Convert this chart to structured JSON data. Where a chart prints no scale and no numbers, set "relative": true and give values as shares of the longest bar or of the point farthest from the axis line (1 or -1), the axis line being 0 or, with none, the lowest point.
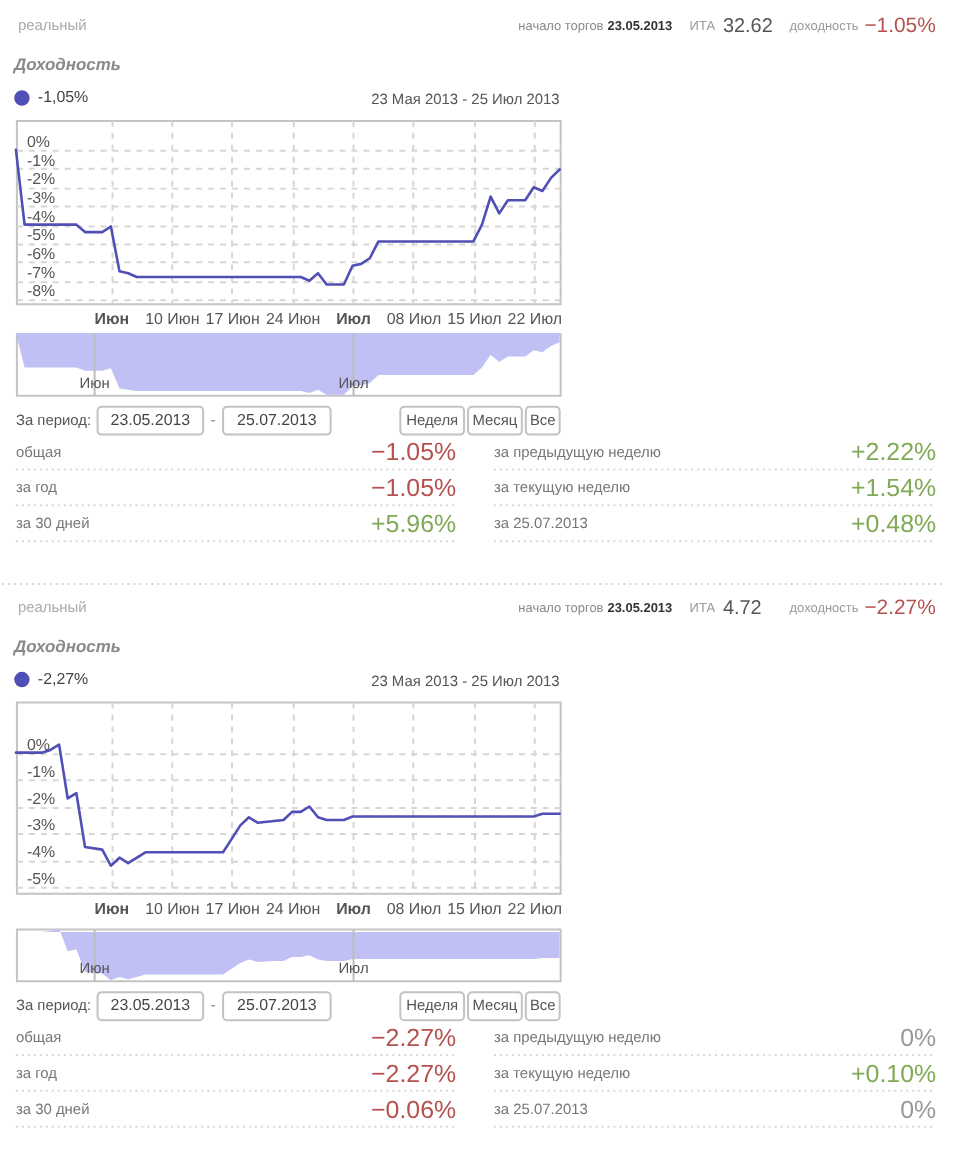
{
  "chart_data": [
    {
      "type": "other",
      "annotations": [
        "реальный",
        "начало торгов",
        "23.05.2013",
        "ИТА",
        "32.62",
        "доходность",
        "−1.05%"
      ],
      "colors": [
        "#aaaaaa",
        "#888888",
        "#333333",
        "#999999",
        "#555555",
        "#999999",
        "#b5524f"
      ]
    },
    {
      "type": "line",
      "title": "Доходность",
      "annotations": [
        "23 Мая 2013 - 25 Июл 2013"
      ],
      "x": [
        "2013-05-23",
        "2013-05-24",
        "2013-05-30",
        "2013-05-31",
        "2013-06-02",
        "2013-06-03",
        "2013-06-04",
        "2013-06-05",
        "2013-06-06",
        "2013-06-25",
        "2013-06-26",
        "2013-06-27",
        "2013-06-28",
        "2013-06-30",
        "2013-07-01",
        "2013-07-02",
        "2013-07-03",
        "2013-07-04",
        "2013-07-15",
        "2013-07-16",
        "2013-07-17",
        "2013-07-18",
        "2013-07-19",
        "2013-07-21",
        "2013-07-22",
        "2013-07-23",
        "2013-07-24",
        "2013-07-25"
      ],
      "series": [
        {
          "name": "-1,05%",
          "color": "#4f4fb5",
          "values": [
            0,
            -4.0,
            -4.0,
            -4.4,
            -4.4,
            -4.1,
            -6.5,
            -6.6,
            -6.8,
            -6.8,
            -7.0,
            -6.6,
            -7.2,
            -7.2,
            -6.2,
            -6.1,
            -5.8,
            -4.9,
            -4.9,
            -4.0,
            -2.5,
            -3.4,
            -2.7,
            -2.7,
            -2.0,
            -2.2,
            -1.5,
            -1.05
          ]
        }
      ],
      "xlim": [
        "2013-05-23",
        "2013-07-25"
      ],
      "xticks": [
        {
          "value": "2013-06-03",
          "label": "Июн"
        },
        {
          "value": "2013-06-10",
          "label": "10 Июн"
        },
        {
          "value": "2013-06-17",
          "label": "17 Июн"
        },
        {
          "value": "2013-06-24",
          "label": "24 Июн"
        },
        {
          "value": "2013-07-01",
          "label": "Июл"
        },
        {
          "value": "2013-07-08",
          "label": "08 Июл"
        },
        {
          "value": "2013-07-15",
          "label": "15 Июл"
        },
        {
          "value": "2013-07-22",
          "label": "22 Июл"
        }
      ],
      "ylim": [
        -8.2,
        1.6
      ],
      "yticks": [
        {
          "value": 0,
          "label": "0%"
        },
        {
          "value": -1,
          "label": "-1%"
        },
        {
          "value": -2,
          "label": "-2%"
        },
        {
          "value": -3,
          "label": "-3%"
        },
        {
          "value": -4,
          "label": "-4%"
        },
        {
          "value": -5,
          "label": "-5%"
        },
        {
          "value": -6,
          "label": "-6%"
        },
        {
          "value": -7,
          "label": "-7%"
        },
        {
          "value": -8,
          "label": "-8%"
        }
      ],
      "grid": true,
      "legend": "top left"
    },
    {
      "type": "area",
      "relative": true,
      "color": "#c0c0f4",
      "categories": [
        null,
        null,
        null,
        null,
        null,
        null,
        null,
        null,
        null,
        "Июн",
        null,
        null,
        null,
        null,
        null,
        null,
        null,
        null,
        null,
        null,
        null,
        null,
        null,
        null,
        null,
        null,
        null,
        null,
        null,
        null,
        null,
        null,
        null,
        null,
        null,
        null,
        null,
        null,
        null,
        "Июл",
        null,
        null,
        null,
        null,
        null,
        null,
        null,
        null,
        null,
        null,
        null,
        null,
        null,
        null,
        null,
        null,
        null,
        null,
        null,
        null,
        null,
        null,
        null,
        null
      ],
      "values": [
        0,
        -0.56,
        -0.56,
        -0.56,
        -0.56,
        -0.56,
        -0.56,
        -0.56,
        -0.61,
        -0.61,
        -0.61,
        -0.57,
        -0.9,
        -0.92,
        -0.94,
        -0.94,
        -0.94,
        -0.94,
        -0.94,
        -0.94,
        -0.94,
        -0.94,
        -0.94,
        -0.94,
        -0.94,
        -0.94,
        -0.94,
        -0.94,
        -0.94,
        -0.94,
        -0.94,
        -0.94,
        -0.94,
        -0.94,
        -0.97,
        -0.92,
        -1,
        -1,
        -1,
        -0.86,
        -0.85,
        -0.81,
        -0.68,
        -0.68,
        -0.68,
        -0.68,
        -0.68,
        -0.68,
        -0.68,
        -0.68,
        -0.68,
        -0.68,
        -0.68,
        -0.68,
        -0.56,
        -0.35,
        -0.47,
        -0.38,
        -0.38,
        -0.38,
        -0.28,
        -0.31,
        -0.21,
        -0.15
      ],
      "grid": "x"
    },
    {
      "type": "other",
      "annotations": [
        "За период:",
        "23.05.2013",
        "-",
        "25.07.2013",
        "Неделя",
        "Месяц",
        "Все",
        "общая",
        "−1.05%",
        "за предыдущую неделю",
        "+2.22%",
        "за год",
        "−1.05%",
        "за текущую неделю",
        "+1.54%",
        "за 30 дней",
        "+5.96%",
        "за 25.07.2013",
        "+0.48%"
      ],
      "colors": [
        "#555555",
        "#444444",
        "#888888",
        "#444444",
        "#555555",
        "#555555",
        "#555555",
        "#777777",
        "#b5524f",
        "#777777",
        "#80aa55",
        "#777777",
        "#b5524f",
        "#777777",
        "#80aa55",
        "#777777",
        "#80aa55",
        "#777777",
        "#80aa55"
      ]
    },
    {
      "type": "other",
      "annotations": [
        "реальный",
        "начало торгов",
        "23.05.2013",
        "ИТА",
        "4.72",
        "доходность",
        "−2.27%"
      ],
      "colors": [
        "#aaaaaa",
        "#888888",
        "#333333",
        "#999999",
        "#555555",
        "#999999",
        "#b5524f"
      ]
    },
    {
      "type": "line",
      "title": "Доходность",
      "annotations": [
        "23 Мая 2013 - 25 Июл 2013"
      ],
      "x": [
        "2013-05-23",
        "2013-05-26",
        "2013-05-27",
        "2013-05-28",
        "2013-05-29",
        "2013-05-30",
        "2013-05-31",
        "2013-06-02",
        "2013-06-03",
        "2013-06-04",
        "2013-06-05",
        "2013-06-07",
        "2013-06-16",
        "2013-06-17",
        "2013-06-18",
        "2013-06-19",
        "2013-06-20",
        "2013-06-23",
        "2013-06-24",
        "2013-06-25",
        "2013-06-26",
        "2013-06-27",
        "2013-06-28",
        "2013-06-30",
        "2013-07-01",
        "2013-07-22",
        "2013-07-23",
        "2013-07-25"
      ],
      "series": [
        {
          "name": "-2,27%",
          "color": "#4f4fb5",
          "values": [
            0,
            0,
            0.1,
            0.3,
            -1.7,
            -1.5,
            -3.5,
            -3.6,
            -4.2,
            -3.9,
            -4.1,
            -3.7,
            -3.7,
            -3.2,
            -2.7,
            -2.4,
            -2.6,
            -2.5,
            -2.2,
            -2.2,
            -2.0,
            -2.4,
            -2.5,
            -2.5,
            -2.37,
            -2.37,
            -2.27,
            -2.27
          ]
        }
      ],
      "xlim": [
        "2013-05-23",
        "2013-07-25"
      ],
      "xticks": [
        {
          "value": "2013-06-03",
          "label": "Июн"
        },
        {
          "value": "2013-06-10",
          "label": "10 Июн"
        },
        {
          "value": "2013-06-17",
          "label": "17 Июн"
        },
        {
          "value": "2013-06-24",
          "label": "24 Июн"
        },
        {
          "value": "2013-07-01",
          "label": "Июл"
        },
        {
          "value": "2013-07-08",
          "label": "08 Июл"
        },
        {
          "value": "2013-07-15",
          "label": "15 Июл"
        },
        {
          "value": "2013-07-22",
          "label": "22 Июл"
        }
      ],
      "ylim": [
        -5.2,
        1.9
      ],
      "yticks": [
        {
          "value": 0,
          "label": "0%"
        },
        {
          "value": -1,
          "label": "-1%"
        },
        {
          "value": -2,
          "label": "-2%"
        },
        {
          "value": -3,
          "label": "-3%"
        },
        {
          "value": -4,
          "label": "-4%"
        },
        {
          "value": -5,
          "label": "-5%"
        }
      ],
      "grid": true,
      "legend": "top left"
    },
    {
      "type": "area",
      "relative": true,
      "color": "#c0c0f4",
      "categories": [
        null,
        null,
        null,
        null,
        null,
        null,
        null,
        null,
        null,
        "Июн",
        null,
        null,
        null,
        null,
        null,
        null,
        null,
        null,
        null,
        null,
        null,
        null,
        null,
        null,
        null,
        null,
        null,
        null,
        null,
        null,
        null,
        null,
        null,
        null,
        null,
        null,
        null,
        null,
        null,
        "Июл",
        null,
        null,
        null,
        null,
        null,
        null,
        null,
        null,
        null,
        null,
        null,
        null,
        null,
        null,
        null,
        null,
        null,
        null,
        null,
        null,
        null,
        null,
        null,
        null
      ],
      "values": [
        0,
        0,
        0,
        0,
        0.02,
        0.07,
        -0.4,
        -0.36,
        -0.83,
        -0.85,
        -0.86,
        -1,
        -0.93,
        -0.98,
        -0.93,
        -0.88,
        -0.88,
        -0.88,
        -0.88,
        -0.88,
        -0.88,
        -0.88,
        -0.88,
        -0.88,
        -0.88,
        -0.76,
        -0.64,
        -0.57,
        -0.62,
        -0.61,
        -0.6,
        -0.6,
        -0.52,
        -0.52,
        -0.48,
        -0.57,
        -0.6,
        -0.6,
        -0.6,
        -0.56,
        -0.56,
        -0.56,
        -0.56,
        -0.56,
        -0.56,
        -0.56,
        -0.56,
        -0.56,
        -0.56,
        -0.56,
        -0.56,
        -0.56,
        -0.56,
        -0.56,
        -0.56,
        -0.56,
        -0.56,
        -0.56,
        -0.56,
        -0.56,
        -0.56,
        -0.54,
        -0.54,
        -0.54
      ],
      "grid": "x"
    },
    {
      "type": "other",
      "annotations": [
        "За период:",
        "23.05.2013",
        "-",
        "25.07.2013",
        "Неделя",
        "Месяц",
        "Все",
        "общая",
        "−2.27%",
        "за предыдущую неделю",
        "0%",
        "за год",
        "−2.27%",
        "за текущую неделю",
        "+0.10%",
        "за 30 дней",
        "−0.06%",
        "за 25.07.2013",
        "0%"
      ],
      "colors": [
        "#555555",
        "#444444",
        "#888888",
        "#444444",
        "#555555",
        "#555555",
        "#555555",
        "#777777",
        "#b5524f",
        "#777777",
        "#999999",
        "#777777",
        "#b5524f",
        "#777777",
        "#80aa55",
        "#777777",
        "#b5524f",
        "#777777",
        "#999999"
      ]
    }
  ]
}
